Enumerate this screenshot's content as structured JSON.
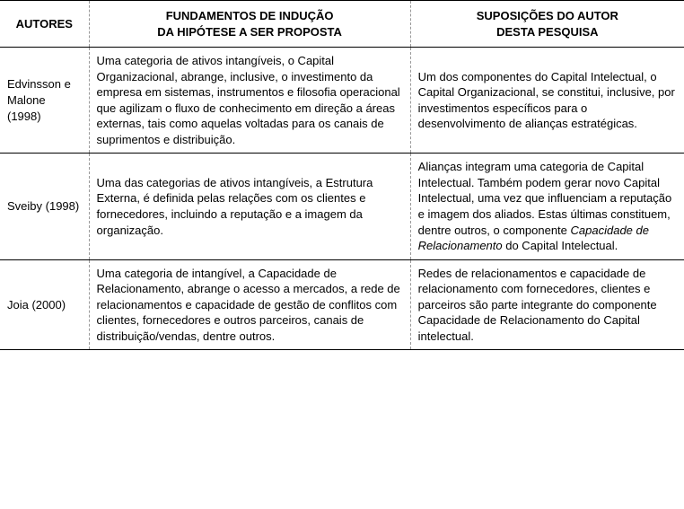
{
  "table": {
    "columns": {
      "authors": {
        "header": "AUTORES",
        "width": "13%"
      },
      "fundamentals": {
        "header_line1": "FUNDAMENTOS DE INDUÇÃO",
        "header_line2": "DA HIPÓTESE A SER PROPOSTA",
        "width": "47%"
      },
      "suppositions": {
        "header_line1": "SUPOSIÇÕES DO AUTOR",
        "header_line2": "DESTA PESQUISA",
        "width": "40%"
      }
    },
    "rows": [
      {
        "author": "Edvinsson e Malone (1998)",
        "fundamentals": "Uma categoria de ativos intangíveis, o Capital Organizacional, abrange, inclusive, o investimento da empresa em sistemas, instrumentos e filosofia operacional que agilizam o fluxo de conhecimento em direção a áreas externas, tais como aquelas voltadas para os canais de suprimentos e distribuição.",
        "suppositions": "Um dos componentes do Capital Intelectual, o Capital Organizacional, se constitui, inclusive, por investimentos específicos para o desenvolvimento de alianças estratégicas."
      },
      {
        "author": "Sveiby (1998)",
        "fundamentals": "Uma das categorias de ativos intangíveis, a Estrutura Externa, é definida pelas relações com os clientes e fornecedores, incluindo a reputação e a imagem da organização.",
        "suppositions_pre": "Alianças integram uma categoria de Capital Intelectual. Também podem gerar novo Capital Intelectual, uma vez que influenciam a reputação e imagem dos aliados. Estas últimas constituem, dentre outros, o componente ",
        "suppositions_italic": "Capacidade de Relacionamento",
        "suppositions_post": " do Capital Intelectual."
      },
      {
        "author": "Joia (2000)",
        "fundamentals": "Uma categoria de intangível, a Capacidade de Relacionamento, abrange o acesso a mercados, a rede de relacionamentos e capacidade de gestão de conflitos com clientes, fornecedores e outros parceiros, canais de distribuição/vendas, dentre outros.",
        "suppositions": "Redes de relacionamentos e capacidade de relacionamento com fornecedores, clientes e parceiros são parte integrante do componente Capacidade de Relacionamento do Capital intelectual."
      }
    ],
    "styling": {
      "font_family": "Arial",
      "font_size": 13,
      "header_font_weight": "bold",
      "text_color": "#000000",
      "background_color": "#ffffff",
      "horizontal_border": "1px solid #000000",
      "vertical_border": "1px dashed #999999",
      "line_height": 1.35
    }
  }
}
